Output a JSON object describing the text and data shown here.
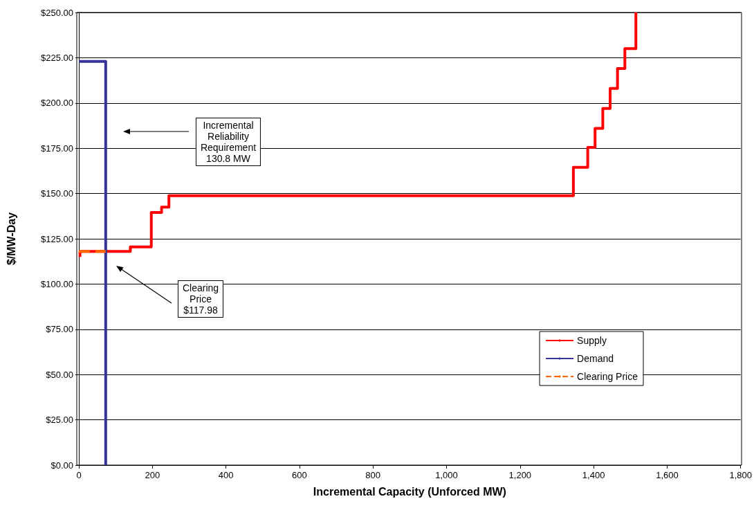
{
  "chart_data": {
    "type": "line",
    "xlabel": "Incremental Capacity (Unforced MW)",
    "ylabel": "$/MW-Day",
    "xlim": [
      0,
      1800
    ],
    "xticks": [
      0,
      200,
      400,
      600,
      800,
      {
        "value": 1000,
        "label": "1,000"
      },
      {
        "value": 1200,
        "label": "1,200"
      },
      {
        "value": 1400,
        "label": "1,400"
      },
      {
        "value": 1600,
        "label": "1,600"
      },
      {
        "value": 1800,
        "label": "1,800"
      }
    ],
    "ylim": [
      0,
      250
    ],
    "yticks": [
      {
        "value": 0,
        "label": "$0.00"
      },
      {
        "value": 25,
        "label": "$25.00"
      },
      {
        "value": 50,
        "label": "$50.00"
      },
      {
        "value": 75,
        "label": "$75.00"
      },
      {
        "value": 100,
        "label": "$100.00"
      },
      {
        "value": 125,
        "label": "$125.00"
      },
      {
        "value": 150,
        "label": "$150.00"
      },
      {
        "value": 175,
        "label": "$175.00"
      },
      {
        "value": 200,
        "label": "$200.00"
      },
      {
        "value": 225,
        "label": "$225.00"
      },
      {
        "value": 250,
        "label": "$250.00"
      }
    ],
    "grid": "y",
    "legend": "bottom right",
    "marker": "none",
    "series": [
      {
        "name": "Supply",
        "color": "#ff0000",
        "line_style": "solid",
        "x": [
          3,
          3,
          5,
          140,
          140,
          197,
          197,
          225,
          225,
          245,
          245,
          1345,
          1345,
          1384,
          1384,
          1404,
          1404,
          1425,
          1425,
          1445,
          1445,
          1465,
          1465,
          1485,
          1485,
          1515,
          1515
        ],
        "values": [
          115,
          118,
          118,
          118,
          120.5,
          120.5,
          139.5,
          139.5,
          142.5,
          142.5,
          148.8,
          148.8,
          164.5,
          164.5,
          175.5,
          175.5,
          186,
          186,
          197,
          197,
          208,
          208,
          219,
          219,
          230,
          230,
          250
        ]
      },
      {
        "name": "Demand",
        "color": "#333399",
        "line_style": "solid",
        "x": [
          0,
          73,
          73
        ],
        "values": [
          223,
          223,
          0
        ]
      },
      {
        "name": "Clearing Price",
        "color": "#ff6600",
        "line_style": "dashed",
        "x": [
          0,
          73
        ],
        "values": [
          117.98,
          117.98
        ]
      }
    ],
    "annotations": [
      "Incremental\nReliability\nRequirement\n130.8 MW",
      "Clearing\nPrice\n$117.98"
    ]
  }
}
